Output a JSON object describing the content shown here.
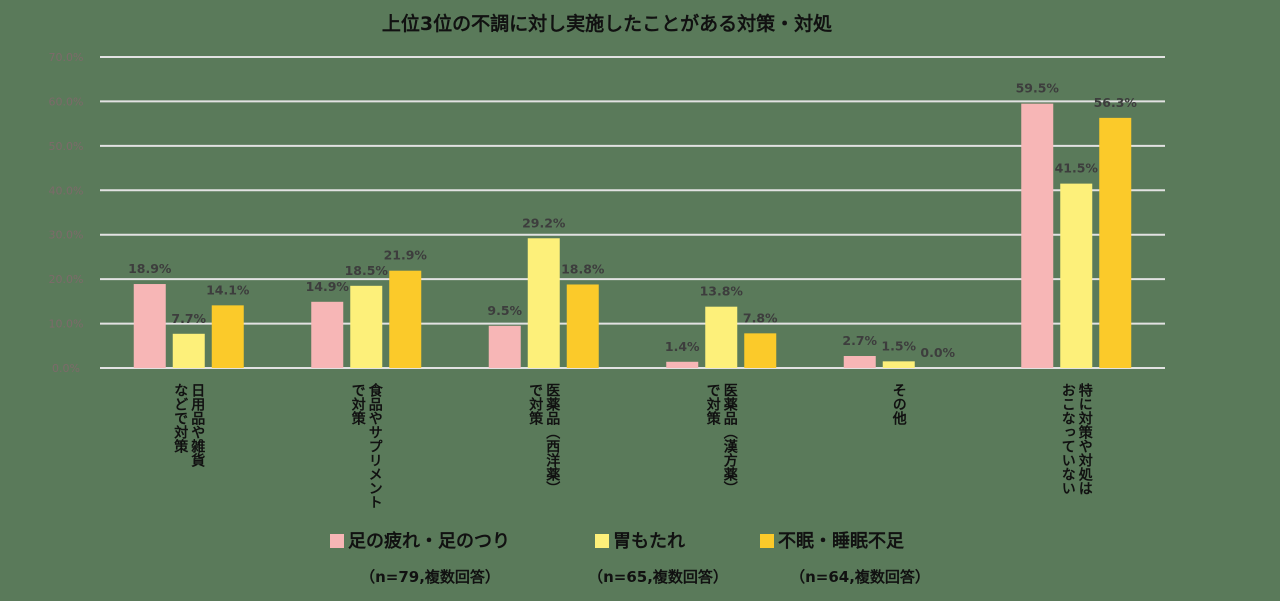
{
  "chart_data": {
    "type": "bar",
    "title": "上位3位の不調に対し実施したことがある対策・対処",
    "y_ticks": [
      "0.0%",
      "10.0%",
      "20.0%",
      "30.0%",
      "40.0%",
      "50.0%",
      "60.0%",
      "70.0%"
    ],
    "ylim": [
      0,
      70
    ],
    "grid": true,
    "categories": [
      [
        "日用品や雑貨",
        "などで対策"
      ],
      [
        "食品やサプリメント",
        "で対策"
      ],
      [
        "医薬品（西洋薬）",
        "で対策"
      ],
      [
        "医薬品（漢方薬）",
        "で対策"
      ],
      [
        "その他"
      ],
      [
        "特に対策や対処は",
        "おこなっていない"
      ]
    ],
    "series": [
      {
        "name": "足の疲れ・足のつり",
        "note": "（n=79,複数回答）",
        "color": "#f7b6b6",
        "values": [
          18.9,
          14.9,
          9.5,
          1.4,
          2.7,
          59.5
        ],
        "labels": [
          "18.9%",
          "14.9%",
          "9.5%",
          "1.4%",
          "2.7%",
          "59.5%"
        ]
      },
      {
        "name": "胃もたれ",
        "note": "（n=65,複数回答）",
        "color": "#fdf07a",
        "values": [
          7.7,
          18.5,
          29.2,
          13.8,
          1.5,
          41.5
        ],
        "labels": [
          "7.7%",
          "18.5%",
          "29.2%",
          "13.8%",
          "1.5%",
          "41.5%"
        ]
      },
      {
        "name": "不眠・睡眠不足",
        "note": "（n=64,複数回答）",
        "color": "#fbca2a",
        "values": [
          14.1,
          21.9,
          18.8,
          7.8,
          0.0,
          56.3
        ],
        "labels": [
          "14.1%",
          "21.9%",
          "18.8%",
          "7.8%",
          "0.0%",
          "56.3%"
        ]
      }
    ],
    "legend_position": "bottom"
  }
}
